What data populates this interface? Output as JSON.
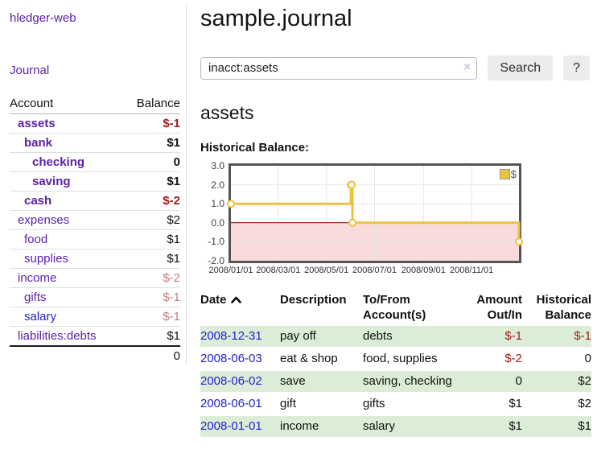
{
  "app": {
    "brand": "hledger-web",
    "nav_journal": "Journal"
  },
  "sidebar": {
    "accounts_table": {
      "headers": {
        "account": "Account",
        "balance": "Balance"
      },
      "rows": [
        {
          "label": "assets",
          "balance": "$-1",
          "indent": 1,
          "emphasis": true,
          "label_color": "purple",
          "balance_color": "negative"
        },
        {
          "label": "bank",
          "balance": "$1",
          "indent": 2,
          "emphasis": true,
          "label_color": "purple",
          "balance_color": "default"
        },
        {
          "label": "checking",
          "balance": "0",
          "indent": 3,
          "emphasis": true,
          "label_color": "purple",
          "balance_color": "default"
        },
        {
          "label": "saving",
          "balance": "$1",
          "indent": 3,
          "emphasis": true,
          "label_color": "purple",
          "balance_color": "default"
        },
        {
          "label": "cash",
          "balance": "$-2",
          "indent": 2,
          "emphasis": true,
          "label_color": "purple",
          "balance_color": "negative"
        },
        {
          "label": "expenses",
          "balance": "$2",
          "indent": 1,
          "emphasis": false,
          "label_color": "purple",
          "balance_color": "default"
        },
        {
          "label": "food",
          "balance": "$1",
          "indent": 2,
          "emphasis": false,
          "label_color": "purple",
          "balance_color": "default"
        },
        {
          "label": "supplies",
          "balance": "$1",
          "indent": 2,
          "emphasis": false,
          "label_color": "purple",
          "balance_color": "default"
        },
        {
          "label": "income",
          "balance": "$-2",
          "indent": 1,
          "emphasis": false,
          "label_color": "purple",
          "balance_color": "negative-light"
        },
        {
          "label": "gifts",
          "balance": "$-1",
          "indent": 2,
          "emphasis": false,
          "label_color": "purple",
          "balance_color": "negative-light"
        },
        {
          "label": "salary",
          "balance": "$-1",
          "indent": 2,
          "emphasis": false,
          "label_color": "blue",
          "balance_color": "negative-light"
        },
        {
          "label": "liabilities:debts",
          "balance": "$1",
          "indent": 1,
          "emphasis": false,
          "label_color": "purple",
          "balance_color": "default"
        }
      ],
      "total": "0"
    }
  },
  "header": {
    "title": "sample.journal"
  },
  "search": {
    "query": "inacct:assets",
    "clear_icon": "×",
    "search_button": "Search",
    "help_button": "?"
  },
  "account_page": {
    "heading": "assets",
    "chart_label": "Historical Balance:"
  },
  "chart_data": {
    "type": "line",
    "title": "Historical Balance:",
    "step": true,
    "series": [
      {
        "name": "$",
        "color": "#edc240",
        "points": [
          [
            "2008-01-01",
            1
          ],
          [
            "2008-06-01",
            2
          ],
          [
            "2008-06-02",
            2
          ],
          [
            "2008-06-03",
            0
          ],
          [
            "2008-12-31",
            -1
          ]
        ]
      }
    ],
    "x_range": [
      "2008-01-01",
      "2008-12-31"
    ],
    "x_ticks": [
      "2008/01/01",
      "2008/03/01",
      "2008/05/01",
      "2008/07/01",
      "2008/09/01",
      "2008/11/01"
    ],
    "y_ticks": [
      3.0,
      2.0,
      1.0,
      0.0,
      -1.0,
      -2.0
    ],
    "ylim": [
      -2,
      3
    ],
    "grid": true,
    "negative_region_color": "#fadbdb",
    "zero_line_color": "#8b0000",
    "gridline_color": "#e7e7e7",
    "legend": {
      "label": "$",
      "position": "top-right"
    }
  },
  "register_table": {
    "headers": {
      "date": "Date",
      "description": "Description",
      "accounts": "To/From Account(s)",
      "amount": "Amount Out/In",
      "balance": "Historical Balance"
    },
    "sort": {
      "column": "date",
      "direction": "ascending"
    },
    "rows": [
      {
        "date": "2008-12-31",
        "description": "pay off",
        "accounts": "debts",
        "amount": "$-1",
        "balance": "$-1"
      },
      {
        "date": "2008-06-03",
        "description": "eat & shop",
        "accounts": "food, supplies",
        "amount": "$-2",
        "balance": "0"
      },
      {
        "date": "2008-06-02",
        "description": "save",
        "accounts": "saving, checking",
        "amount": "0",
        "balance": "$2"
      },
      {
        "date": "2008-06-01",
        "description": "gift",
        "accounts": "gifts",
        "amount": "$1",
        "balance": "$2"
      },
      {
        "date": "2008-01-01",
        "description": "income",
        "accounts": "salary",
        "amount": "$1",
        "balance": "$1"
      }
    ]
  },
  "colors": {
    "link_purple": "#5b21a8",
    "link_blue": "#2222cc",
    "negative": "#a11d1d",
    "negative_light": "#c47e7e",
    "row_green": "#dcedd7",
    "chart_line": "#edc240",
    "chart_negative_fill": "#fadbdb",
    "zero_line": "#8b0000",
    "button_bg": "#ececec"
  }
}
